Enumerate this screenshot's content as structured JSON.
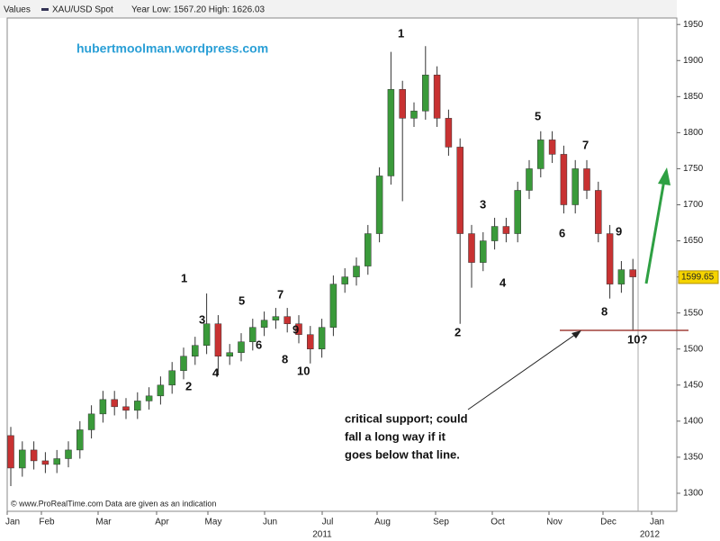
{
  "chart_data": {
    "type": "candlestick",
    "header": [
      "Values",
      "XAU/USD Spot",
      "Year Low: 1567.20 High: 1626.03"
    ],
    "watermark": "hubertmoolman.wordpress.com",
    "footer": "© www.ProRealTime.com Data are given as an indication",
    "annotation": [
      "critical support; could",
      "fall a long way if it",
      "goes below that line."
    ],
    "wave_labels": [
      "1",
      "2",
      "3",
      "4",
      "5",
      "6",
      "7",
      "8",
      "9",
      "10",
      "1",
      "2",
      "3",
      "4",
      "5",
      "6",
      "7",
      "8",
      "9",
      "10?"
    ],
    "x_labels": [
      "Jan",
      "Feb",
      "Mar",
      "Apr",
      "May",
      "Jun",
      "Jul",
      "Aug",
      "Sep",
      "Oct",
      "Nov",
      "Dec",
      "Jan"
    ],
    "year_labels": [
      "2011",
      "2012"
    ],
    "last_price": 1599.65,
    "up_color": "#3a9a3a",
    "down_color": "#c83232",
    "ylim": [
      1275,
      1959
    ],
    "yticks": [
      1300,
      1350,
      1400,
      1450,
      1500,
      1550,
      1600,
      1650,
      1700,
      1750,
      1800,
      1850,
      1900,
      1950
    ],
    "open": [
      1380,
      1335,
      1360,
      1345,
      1340,
      1348,
      1360,
      1388,
      1410,
      1430,
      1420,
      1415,
      1428,
      1435,
      1450,
      1470,
      1490,
      1505,
      1535,
      1490,
      1495,
      1510,
      1530,
      1540,
      1545,
      1535,
      1520,
      1500,
      1530,
      1590,
      1600,
      1615,
      1660,
      1740,
      1860,
      1820,
      1830,
      1880,
      1820,
      1780,
      1660,
      1620,
      1650,
      1670,
      1660,
      1720,
      1750,
      1790,
      1770,
      1700,
      1750,
      1720,
      1660,
      1590,
      1610
    ],
    "high": [
      1392,
      1372,
      1372,
      1357,
      1360,
      1372,
      1400,
      1422,
      1442,
      1442,
      1432,
      1440,
      1447,
      1462,
      1482,
      1502,
      1517,
      1577,
      1547,
      1507,
      1522,
      1542,
      1552,
      1557,
      1557,
      1547,
      1532,
      1542,
      1602,
      1612,
      1627,
      1672,
      1752,
      1912,
      1872,
      1842,
      1920,
      1892,
      1832,
      1792,
      1672,
      1662,
      1682,
      1682,
      1732,
      1762,
      1802,
      1802,
      1782,
      1762,
      1762,
      1732,
      1672,
      1622,
      1625
    ],
    "low": [
      1310,
      1323,
      1333,
      1328,
      1328,
      1336,
      1348,
      1376,
      1398,
      1408,
      1403,
      1403,
      1416,
      1423,
      1438,
      1458,
      1478,
      1493,
      1465,
      1478,
      1483,
      1498,
      1518,
      1528,
      1523,
      1508,
      1480,
      1488,
      1518,
      1578,
      1588,
      1603,
      1648,
      1728,
      1705,
      1808,
      1818,
      1808,
      1768,
      1535,
      1585,
      1608,
      1638,
      1648,
      1648,
      1708,
      1738,
      1758,
      1688,
      1688,
      1708,
      1648,
      1570,
      1578,
      1525
    ],
    "close": [
      1335,
      1360,
      1345,
      1340,
      1348,
      1360,
      1388,
      1410,
      1430,
      1420,
      1415,
      1428,
      1435,
      1450,
      1470,
      1490,
      1505,
      1535,
      1490,
      1495,
      1510,
      1530,
      1540,
      1545,
      1535,
      1520,
      1500,
      1530,
      1590,
      1600,
      1615,
      1660,
      1740,
      1860,
      1820,
      1830,
      1880,
      1820,
      1780,
      1660,
      1620,
      1650,
      1670,
      1660,
      1720,
      1750,
      1790,
      1770,
      1700,
      1750,
      1720,
      1660,
      1590,
      1610,
      1600
    ]
  }
}
